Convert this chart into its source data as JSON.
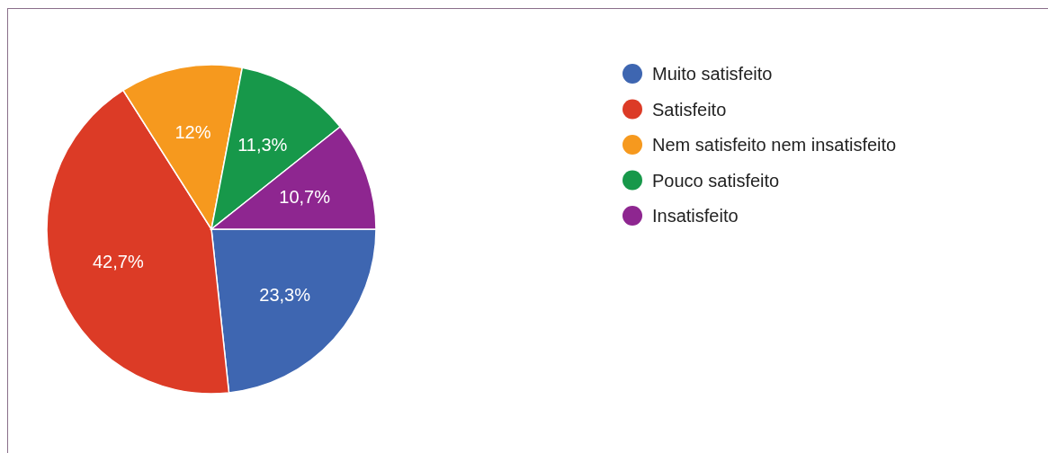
{
  "chart_data": {
    "type": "pie",
    "categories": [
      "Muito satisfeito",
      "Satisfeito",
      "Nem satisfeito nem insatisfeito",
      "Pouco satisfeito",
      "Insatisfeito"
    ],
    "values": [
      23.3,
      42.7,
      12,
      11.3,
      10.7
    ],
    "colors": [
      "#3e66b1",
      "#dc3b26",
      "#f6991e",
      "#17984a",
      "#8e2690"
    ],
    "value_labels": [
      "23,3%",
      "42,7%",
      "12%",
      "11,3%",
      "10,7%"
    ],
    "legend": "right"
  }
}
